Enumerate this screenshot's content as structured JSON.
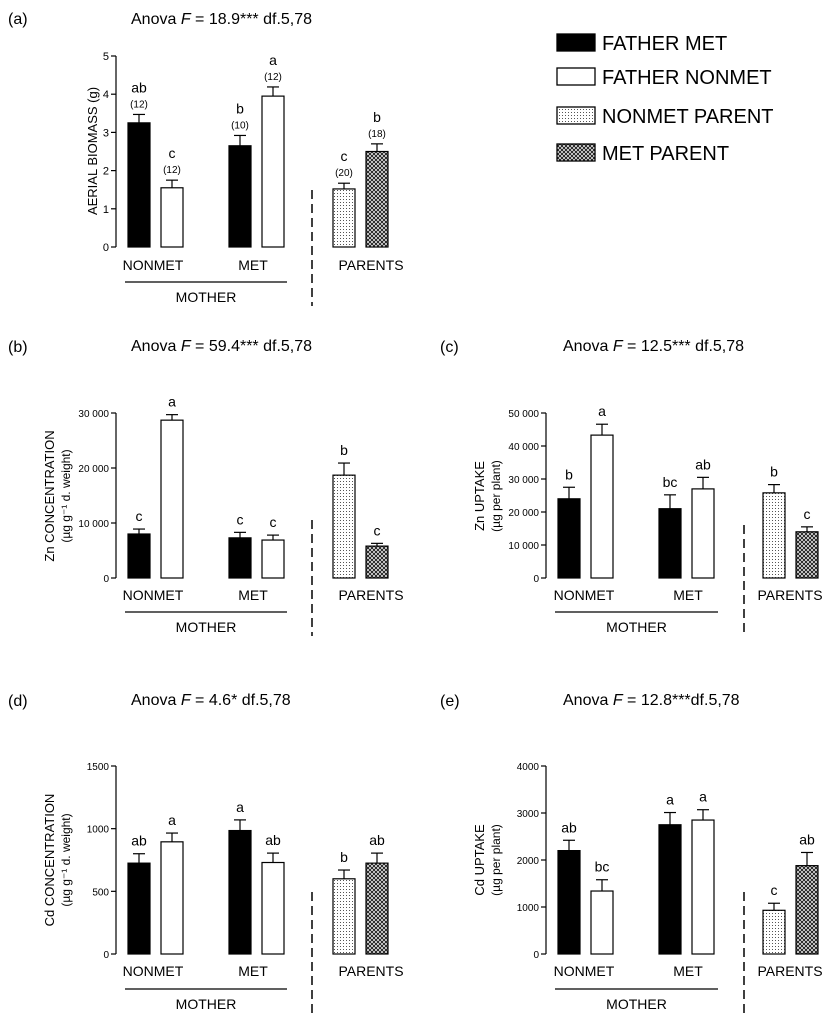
{
  "legend": [
    {
      "label": "FATHER MET",
      "fill": "solid-black"
    },
    {
      "label": "FATHER NONMET",
      "fill": "white"
    },
    {
      "label": "NONMET PARENT",
      "fill": "dots"
    },
    {
      "label": "MET PARENT",
      "fill": "crosshatch"
    }
  ],
  "chart_data": [
    {
      "type": "bar",
      "panel": "(a)",
      "anova": {
        "prefix": "Anova ",
        "F": "F",
        "value": " = 18.9*** df.5,78"
      },
      "ylabel": [
        "AERIAL BIOMASS (g)"
      ],
      "ylim": [
        0,
        5
      ],
      "yticks": [
        "0",
        "1",
        "2",
        "3",
        "4",
        "5"
      ],
      "categories": [
        "NONMET",
        "MET",
        "PARENTS"
      ],
      "group_label": "MOTHER",
      "bars": [
        {
          "series": "FATHER MET",
          "category": "NONMET",
          "value": 3.25,
          "err": 0.22,
          "sig": "ab",
          "n": "(12)"
        },
        {
          "series": "FATHER NONMET",
          "category": "NONMET",
          "value": 1.55,
          "err": 0.2,
          "sig": "c",
          "n": "(12)"
        },
        {
          "series": "FATHER MET",
          "category": "MET",
          "value": 2.65,
          "err": 0.27,
          "sig": "b",
          "n": "(10)"
        },
        {
          "series": "FATHER NONMET",
          "category": "MET",
          "value": 3.95,
          "err": 0.24,
          "sig": "a",
          "n": "(12)"
        },
        {
          "series": "NONMET PARENT",
          "category": "PARENTS",
          "value": 1.52,
          "err": 0.15,
          "sig": "c",
          "n": "(20)"
        },
        {
          "series": "MET PARENT",
          "category": "PARENTS",
          "value": 2.5,
          "err": 0.2,
          "sig": "b",
          "n": "(18)"
        }
      ]
    },
    {
      "type": "bar",
      "panel": "(b)",
      "anova": {
        "prefix": "Anova ",
        "F": "F",
        "value": " = 59.4*** df.5,78"
      },
      "ylabel": [
        "Zn CONCENTRATION",
        "(µg g⁻¹ d. weight)"
      ],
      "ylim": [
        0,
        30000
      ],
      "yticks": [
        "0",
        "10 000",
        "20 000",
        "30 000"
      ],
      "categories": [
        "NONMET",
        "MET",
        "PARENTS"
      ],
      "group_label": "MOTHER",
      "bars": [
        {
          "series": "FATHER MET",
          "category": "NONMET",
          "value": 8000,
          "err": 900,
          "sig": "c"
        },
        {
          "series": "FATHER NONMET",
          "category": "NONMET",
          "value": 28700,
          "err": 1000,
          "sig": "a"
        },
        {
          "series": "FATHER MET",
          "category": "MET",
          "value": 7300,
          "err": 1000,
          "sig": "c"
        },
        {
          "series": "FATHER NONMET",
          "category": "MET",
          "value": 6900,
          "err": 900,
          "sig": "c"
        },
        {
          "series": "NONMET PARENT",
          "category": "PARENTS",
          "value": 18700,
          "err": 2200,
          "sig": "b"
        },
        {
          "series": "MET PARENT",
          "category": "PARENTS",
          "value": 5800,
          "err": 500,
          "sig": "c"
        }
      ]
    },
    {
      "type": "bar",
      "panel": "(c)",
      "anova": {
        "prefix": "Anova ",
        "F": "F",
        "value": " = 12.5*** df.5,78"
      },
      "ylabel": [
        "Zn UPTAKE",
        "(µg per plant)"
      ],
      "ylim": [
        0,
        50000
      ],
      "yticks": [
        "0",
        "10 000",
        "20 000",
        "30 000",
        "40 000",
        "50 000"
      ],
      "categories": [
        "NONMET",
        "MET",
        "PARENTS"
      ],
      "group_label": "MOTHER",
      "bars": [
        {
          "series": "FATHER MET",
          "category": "NONMET",
          "value": 24000,
          "err": 3500,
          "sig": "b"
        },
        {
          "series": "FATHER NONMET",
          "category": "NONMET",
          "value": 43300,
          "err": 3300,
          "sig": "a"
        },
        {
          "series": "FATHER MET",
          "category": "MET",
          "value": 21000,
          "err": 4200,
          "sig": "bc"
        },
        {
          "series": "FATHER NONMET",
          "category": "MET",
          "value": 27000,
          "err": 3500,
          "sig": "ab"
        },
        {
          "series": "NONMET PARENT",
          "category": "PARENTS",
          "value": 25800,
          "err": 2500,
          "sig": "b"
        },
        {
          "series": "MET PARENT",
          "category": "PARENTS",
          "value": 14000,
          "err": 1500,
          "sig": "c"
        }
      ]
    },
    {
      "type": "bar",
      "panel": "(d)",
      "anova": {
        "prefix": "Anova ",
        "F": "F",
        "value": " = 4.6* df.5,78"
      },
      "ylabel": [
        "Cd CONCENTRATION",
        "(µg g⁻¹ d. weight)"
      ],
      "ylim": [
        0,
        1500
      ],
      "yticks": [
        "0",
        "500",
        "1000",
        "1500"
      ],
      "categories": [
        "NONMET",
        "MET",
        "PARENTS"
      ],
      "group_label": "MOTHER",
      "bars": [
        {
          "series": "FATHER MET",
          "category": "NONMET",
          "value": 725,
          "err": 75,
          "sig": "ab"
        },
        {
          "series": "FATHER NONMET",
          "category": "NONMET",
          "value": 895,
          "err": 70,
          "sig": "a"
        },
        {
          "series": "FATHER MET",
          "category": "MET",
          "value": 985,
          "err": 85,
          "sig": "a"
        },
        {
          "series": "FATHER NONMET",
          "category": "MET",
          "value": 730,
          "err": 75,
          "sig": "ab"
        },
        {
          "series": "NONMET PARENT",
          "category": "PARENTS",
          "value": 600,
          "err": 70,
          "sig": "b"
        },
        {
          "series": "MET PARENT",
          "category": "PARENTS",
          "value": 725,
          "err": 80,
          "sig": "ab"
        }
      ]
    },
    {
      "type": "bar",
      "panel": "(e)",
      "anova": {
        "prefix": "Anova ",
        "F": "F",
        "value": " = 12.8***df.5,78"
      },
      "ylabel": [
        "Cd UPTAKE",
        "(µg per plant)"
      ],
      "ylim": [
        0,
        4000
      ],
      "yticks": [
        "0",
        "1000",
        "2000",
        "3000",
        "4000"
      ],
      "categories": [
        "NONMET",
        "MET",
        "PARENTS"
      ],
      "group_label": "MOTHER",
      "bars": [
        {
          "series": "FATHER MET",
          "category": "NONMET",
          "value": 2200,
          "err": 220,
          "sig": "ab"
        },
        {
          "series": "FATHER NONMET",
          "category": "NONMET",
          "value": 1340,
          "err": 240,
          "sig": "bc"
        },
        {
          "series": "FATHER MET",
          "category": "MET",
          "value": 2750,
          "err": 260,
          "sig": "a"
        },
        {
          "series": "FATHER NONMET",
          "category": "MET",
          "value": 2850,
          "err": 220,
          "sig": "a"
        },
        {
          "series": "NONMET PARENT",
          "category": "PARENTS",
          "value": 930,
          "err": 150,
          "sig": "c"
        },
        {
          "series": "MET PARENT",
          "category": "PARENTS",
          "value": 1880,
          "err": 280,
          "sig": "ab"
        }
      ]
    }
  ]
}
